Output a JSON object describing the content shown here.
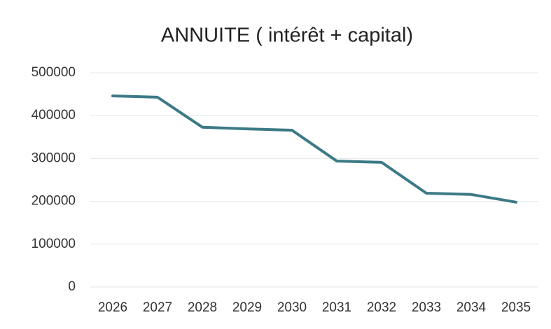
{
  "chart_data": {
    "type": "line",
    "title": "ANNUITE ( intérêt + capital)",
    "categories": [
      "2026",
      "2027",
      "2028",
      "2029",
      "2030",
      "2031",
      "2032",
      "2033",
      "2034",
      "2035"
    ],
    "values": [
      446000,
      443000,
      373000,
      369000,
      366000,
      294000,
      291000,
      219000,
      216000,
      198000
    ],
    "color": "#3c7a86",
    "ylim": [
      0,
      500000
    ],
    "yticks": [
      0,
      100000,
      200000,
      300000,
      400000,
      500000
    ],
    "grid": true
  }
}
